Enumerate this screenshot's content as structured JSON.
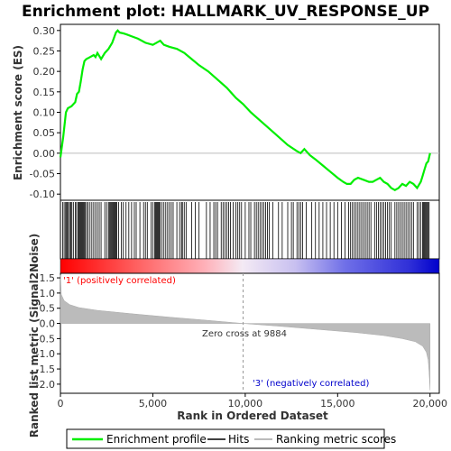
{
  "chart_data": {
    "type": "line",
    "title": "Enrichment plot: HALLMARK_UV_RESPONSE_UP",
    "top_panel": {
      "ylabel": "Enrichment score (ES)",
      "ylim": [
        -0.115,
        0.315
      ],
      "yticks": [
        -0.1,
        -0.05,
        0.0,
        0.05,
        0.1,
        0.15,
        0.2,
        0.25,
        0.3
      ],
      "ytick_labels": [
        "-0.10",
        "-0.05",
        "0.00",
        "0.05",
        "0.10",
        "0.15",
        "0.20",
        "0.25",
        "0.30"
      ],
      "series": [
        {
          "name": "Enrichment profile",
          "color": "#00ee00",
          "x": [
            0,
            150,
            300,
            400,
            600,
            800,
            900,
            1000,
            1100,
            1200,
            1300,
            1400,
            1600,
            1800,
            1900,
            2000,
            2200,
            2400,
            2600,
            2800,
            3000,
            3100,
            3200,
            3400,
            3600,
            3900,
            4200,
            4600,
            5000,
            5200,
            5400,
            5600,
            5900,
            6300,
            6700,
            7100,
            7500,
            8000,
            8500,
            9000,
            9500,
            9884,
            10300,
            10800,
            11300,
            11800,
            12300,
            12800,
            13000,
            13200,
            13500,
            13800,
            14200,
            14600,
            15000,
            15300,
            15500,
            15700,
            15900,
            16100,
            16400,
            16700,
            16900,
            17100,
            17300,
            17500,
            17700,
            17900,
            18100,
            18300,
            18500,
            18700,
            18900,
            19100,
            19300,
            19500,
            19600,
            19700,
            19800,
            19900,
            20000
          ],
          "y": [
            -0.01,
            0.04,
            0.1,
            0.11,
            0.115,
            0.125,
            0.145,
            0.15,
            0.175,
            0.205,
            0.225,
            0.23,
            0.235,
            0.24,
            0.235,
            0.245,
            0.23,
            0.245,
            0.255,
            0.27,
            0.295,
            0.3,
            0.295,
            0.293,
            0.29,
            0.285,
            0.28,
            0.27,
            0.265,
            0.27,
            0.275,
            0.265,
            0.26,
            0.255,
            0.245,
            0.23,
            0.215,
            0.2,
            0.18,
            0.16,
            0.135,
            0.12,
            0.1,
            0.08,
            0.06,
            0.04,
            0.02,
            0.005,
            0.0,
            0.01,
            -0.005,
            -0.015,
            -0.03,
            -0.045,
            -0.06,
            -0.07,
            -0.075,
            -0.075,
            -0.065,
            -0.06,
            -0.065,
            -0.07,
            -0.07,
            -0.065,
            -0.06,
            -0.07,
            -0.075,
            -0.085,
            -0.09,
            -0.085,
            -0.075,
            -0.08,
            -0.07,
            -0.075,
            -0.085,
            -0.07,
            -0.055,
            -0.04,
            -0.025,
            -0.02,
            0.0
          ]
        }
      ]
    },
    "hits": [
      120,
      200,
      280,
      330,
      380,
      430,
      500,
      560,
      620,
      700,
      800,
      870,
      950,
      1000,
      1050,
      1100,
      1150,
      1200,
      1250,
      1300,
      1350,
      1420,
      1500,
      1600,
      1700,
      1800,
      1900,
      2000,
      2100,
      2200,
      2400,
      2500,
      2600,
      2650,
      2700,
      2750,
      2800,
      2850,
      2900,
      2950,
      3000,
      3050,
      3150,
      3300,
      3400,
      3550,
      3700,
      3850,
      4000,
      4100,
      4300,
      4500,
      4600,
      4700,
      4900,
      5000,
      5100,
      5150,
      5200,
      5250,
      5300,
      5350,
      5400,
      5500,
      5600,
      5700,
      5800,
      5900,
      6000,
      6100,
      6300,
      6450,
      6550,
      6600,
      6700,
      6800,
      7100,
      7300,
      7500,
      7900,
      8100,
      8300,
      8400,
      8500,
      8700,
      8800,
      8900,
      9000,
      9100,
      9200,
      9350,
      9500,
      9600,
      9700,
      9800,
      10000,
      10200,
      10300,
      10500,
      10600,
      10700,
      10800,
      10900,
      11000,
      11100,
      11200,
      11300,
      11500,
      11800,
      12000,
      12300,
      12500,
      12600,
      12800,
      12900,
      13000,
      13100,
      13300,
      13600,
      13800,
      14000,
      14200,
      14400,
      14600,
      14800,
      15000,
      15200,
      15400,
      15600,
      15700,
      15800,
      15900,
      16000,
      16100,
      16200,
      16300,
      16400,
      16500,
      16600,
      16700,
      16800,
      17000,
      17100,
      17200,
      17300,
      17400,
      17500,
      17600,
      17700,
      17800,
      17900,
      18100,
      18200,
      18300,
      18400,
      18500,
      18600,
      18700,
      18800,
      18900,
      19000,
      19100,
      19300,
      19400,
      19500,
      19600,
      19650,
      19700,
      19750,
      19800,
      19850,
      19900,
      19950
    ],
    "bottom_panel": {
      "ylabel": "Ranked list metric (Signal2Noise)",
      "ylim": [
        -2.3,
        1.65
      ],
      "yticks": [
        -2.0,
        -1.5,
        -1.0,
        -0.5,
        0.0,
        0.5,
        1.0,
        1.5
      ],
      "ytick_labels": [
        "-2.0",
        "-1.5",
        "-1.0",
        "-0.5",
        "0.0",
        "0.5",
        "1.0",
        "1.5"
      ],
      "metric_x": [
        0,
        50,
        200,
        500,
        1000,
        2000,
        4000,
        6000,
        8000,
        9884,
        12000,
        14000,
        16000,
        17500,
        18500,
        19200,
        19600,
        19800,
        19900,
        19950,
        20000
      ],
      "metric_y": [
        1.6,
        0.95,
        0.75,
        0.62,
        0.52,
        0.43,
        0.31,
        0.2,
        0.1,
        0.0,
        -0.1,
        -0.2,
        -0.3,
        -0.4,
        -0.5,
        -0.6,
        -0.75,
        -0.95,
        -1.2,
        -1.6,
        -2.2
      ],
      "color": "#bbbbbb"
    },
    "xlabel": "Rank in Ordered Dataset",
    "xlim": [
      0,
      20500
    ],
    "xticks": [
      0,
      5000,
      10000,
      15000,
      20000
    ],
    "xtick_labels": [
      "0",
      "5,000",
      "10,000",
      "15,000",
      "20,000"
    ],
    "annotations": {
      "positive": "'1' (positively correlated)",
      "negative": "'3' (negatively correlated)",
      "zero_cross": "Zero cross at 9884",
      "zero_cross_x": 9884
    },
    "legend": {
      "placement": "bottom",
      "items": [
        {
          "label": "Enrichment profile",
          "color": "#00ee00"
        },
        {
          "label": "Hits",
          "color": "#000000"
        },
        {
          "label": "Ranking metric scores",
          "color": "#bbbbbb"
        }
      ]
    },
    "colors": {
      "positive_label": "#ff0000",
      "negative_label": "#0000cc",
      "heat_high": "#ff0000",
      "heat_mid": "#ffffff",
      "heat_low": "#0000cc"
    }
  }
}
